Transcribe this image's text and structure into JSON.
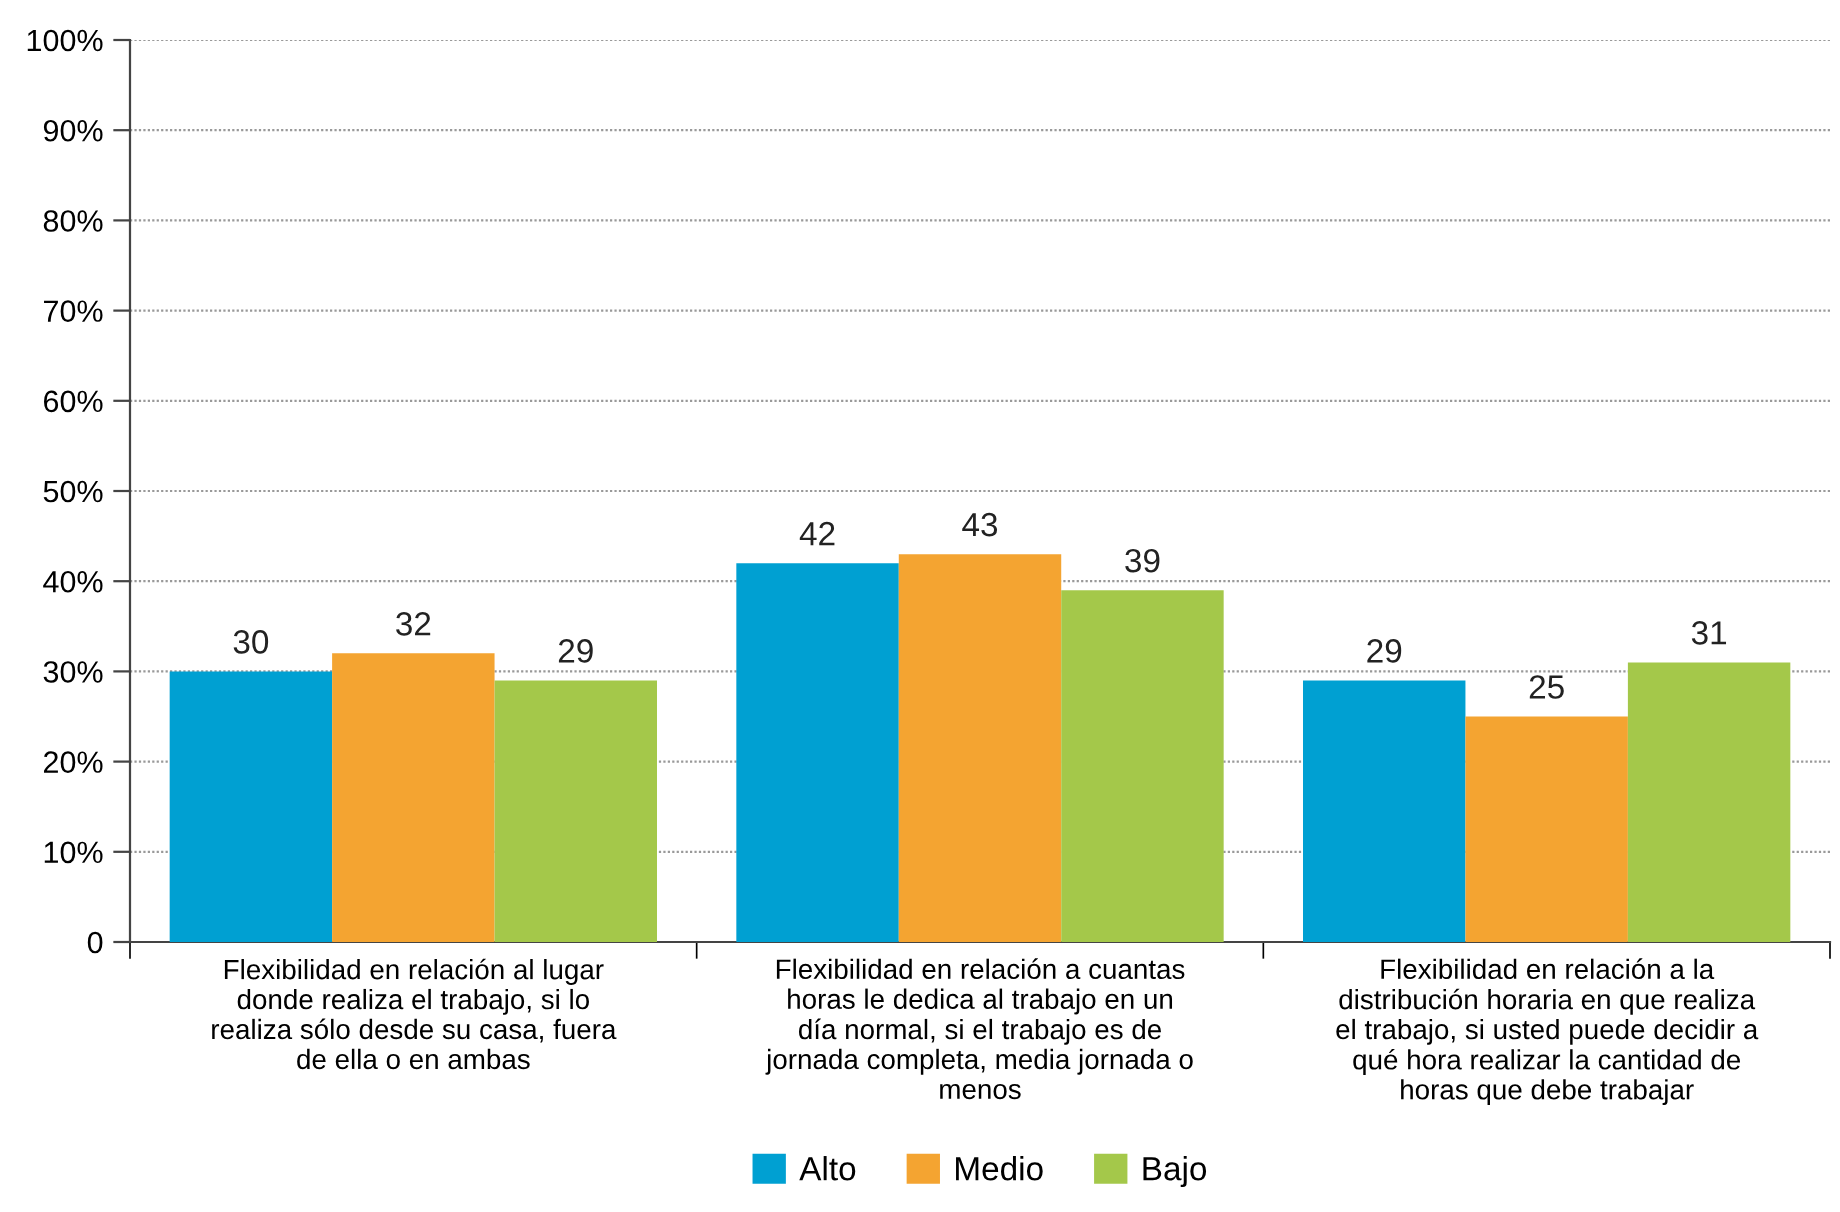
{
  "chart_data": {
    "type": "bar",
    "categories": [
      "Flexibilidad en relación al lugar\ndonde realiza el trabajo, si lo\nrealiza sólo desde su casa, fuera\nde ella o en ambas",
      "Flexibilidad en relación a cuantas\nhoras le dedica al trabajo en un\ndía normal, si el trabajo es de\njornada completa, media jornada o\nmenos",
      "Flexibilidad en relación a la\ndistribución horaria en que realiza\nel trabajo, si usted puede decidir a\nqué hora realizar la cantidad de\nhoras que debe trabajar"
    ],
    "series": [
      {
        "name": "Alto",
        "color": "#00a0d2",
        "values": [
          30,
          42,
          29
        ]
      },
      {
        "name": "Medio",
        "color": "#f4a431",
        "values": [
          32,
          43,
          25
        ]
      },
      {
        "name": "Bajo",
        "color": "#a4c84a",
        "values": [
          29,
          39,
          31
        ]
      }
    ],
    "ylim": [
      0,
      100
    ],
    "yticks": [
      0,
      {
        "value": 10,
        "label": "10%"
      },
      {
        "value": 20,
        "label": "20%"
      },
      {
        "value": 30,
        "label": "30%"
      },
      {
        "value": 40,
        "label": "40%"
      },
      {
        "value": 50,
        "label": "50%"
      },
      {
        "value": 60,
        "label": "60%"
      },
      {
        "value": 70,
        "label": "70%"
      },
      {
        "value": 80,
        "label": "80%"
      },
      {
        "value": 90,
        "label": "90%"
      },
      {
        "value": 100,
        "label": "100%"
      }
    ],
    "grid": "y",
    "legend": "bottom",
    "data_labels": true
  }
}
